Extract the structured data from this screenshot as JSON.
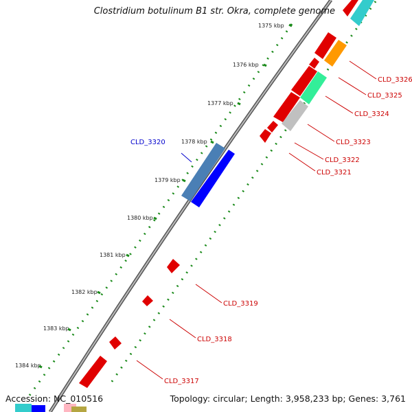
{
  "title": "Clostridium botulinum B1 str. Okra, complete genome",
  "footer": {
    "accession": "Accession: NC_010516",
    "summary": "Topology: circular; Length: 3,958,233 bp; Genes: 3,761"
  },
  "scale_labels": [
    "1375 kbp",
    "1376 kbp",
    "1377 kbp",
    "1378 kbp",
    "1379 kbp",
    "1380 kbp",
    "1381 kbp",
    "1382 kbp",
    "1383 kbp",
    "1384 kbp"
  ],
  "gene_labels": [
    "CLD_3326",
    "CLD_3325",
    "CLD_3324",
    "CLD_3323",
    "CLD_3322",
    "CLD_3321",
    "CLD_3320",
    "CLD_3319",
    "CLD_3318",
    "CLD_3317"
  ],
  "colors": {
    "forward_gene": "#ff0000",
    "label_red": "#cc0000",
    "label_blue": "#0000cc",
    "backbone": "#777777",
    "tick_green": "#1a8a1a",
    "cyan": "#33cccc",
    "orange": "#ff9900",
    "seagreen": "#33ee99",
    "gray_gene": "#c0c0c0",
    "steelblue": "#4a7fb5",
    "blue": "#0000ff"
  }
}
